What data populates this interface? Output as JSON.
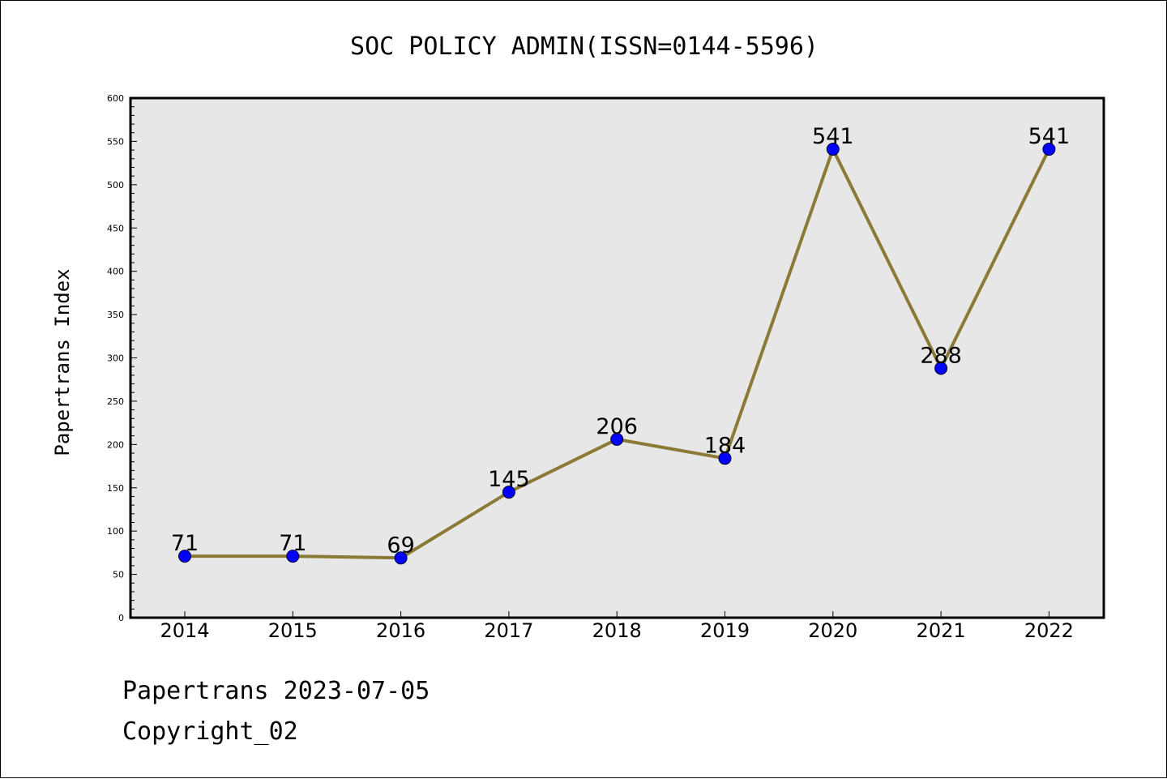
{
  "chart_data": {
    "type": "line",
    "title": "SOC POLICY ADMIN(ISSN=0144-5596)",
    "xlabel": "",
    "ylabel": "Papertrans Index",
    "categories": [
      "2014",
      "2015",
      "2016",
      "2017",
      "2018",
      "2019",
      "2020",
      "2021",
      "2022"
    ],
    "series": [
      {
        "values": [
          71,
          71,
          69,
          145,
          206,
          184,
          541,
          288,
          541
        ],
        "line_color": "#8b7a35",
        "marker_color": "#0000ff"
      }
    ],
    "data_labels": [
      "71",
      "71",
      "69",
      "145",
      "206",
      "184",
      "541",
      "288",
      "541"
    ],
    "ylim": [
      0,
      600
    ],
    "yticks": [
      0,
      50,
      100,
      150,
      200,
      250,
      300,
      350,
      400,
      450,
      500,
      550,
      600
    ],
    "plot_background": "#e7e7e7",
    "grid": false,
    "legend": "none"
  },
  "footer": {
    "date_line": "Papertrans 2023-07-05",
    "copyright_line": "Copyright_02"
  }
}
